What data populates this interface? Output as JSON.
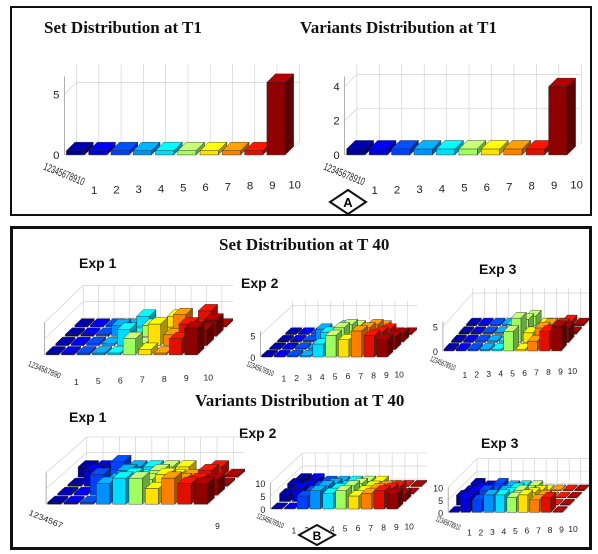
{
  "panel_a": {
    "badge": "A",
    "titles": [
      "Set Distribution at T1",
      "Variants Distribution at T1"
    ]
  },
  "panel_b": {
    "badge": "B",
    "titles": [
      "Set Distribution at T 40",
      "Variants Distribution at T 40"
    ]
  },
  "chart_data": [
    {
      "type": "bar3d",
      "title": "Set Distribution at T1",
      "x_ticks": [
        "1",
        "2",
        "3",
        "4",
        "5",
        "6",
        "7",
        "8",
        "9",
        "10"
      ],
      "z_ticks": [
        "0",
        "5"
      ],
      "zlim": [
        0,
        6.5
      ],
      "y_tick_text": "12345678910",
      "rows": [
        [
          0,
          0,
          0,
          0,
          0,
          0,
          0,
          0,
          0,
          6
        ]
      ],
      "grid": true
    },
    {
      "type": "bar3d",
      "title": "Variants Distribution at T1",
      "x_ticks": [
        "1",
        "2",
        "3",
        "4",
        "5",
        "6",
        "7",
        "8",
        "9",
        "10"
      ],
      "z_ticks": [
        "0",
        "2",
        "4"
      ],
      "zlim": [
        0,
        4.6
      ],
      "y_tick_text": "12345678910",
      "rows": [
        [
          0,
          0,
          0,
          0,
          0,
          0,
          0,
          0,
          0,
          4
        ]
      ],
      "grid": true
    },
    {
      "type": "bar3d",
      "title": "Exp 1",
      "x_ticks": [
        "1",
        "5",
        "6",
        "7",
        "8",
        "9",
        "10"
      ],
      "z_ticks": [],
      "zlim": [
        0,
        6
      ],
      "y_tick_text": "1234567890",
      "rows": [
        [
          0,
          0,
          0,
          0,
          0,
          3,
          1,
          0,
          3,
          5
        ],
        [
          0,
          0,
          0,
          0,
          3,
          0,
          4,
          2,
          4,
          3
        ],
        [
          0,
          0,
          0,
          2,
          0,
          2,
          0,
          4,
          2,
          3
        ],
        [
          0,
          0,
          0,
          0,
          2,
          0,
          2,
          0,
          3,
          0
        ]
      ],
      "grid": true
    },
    {
      "type": "bar3d",
      "title": "Exp 2",
      "x_ticks": [
        "1",
        "2",
        "3",
        "4",
        "5",
        "6",
        "7",
        "8",
        "9",
        "10"
      ],
      "z_ticks": [
        "0",
        "5"
      ],
      "zlim": [
        0,
        6
      ],
      "y_tick_text": "12345678910",
      "rows": [
        [
          0,
          0,
          0,
          0,
          3,
          5,
          4,
          6,
          5,
          4
        ],
        [
          0,
          0,
          0,
          0,
          4,
          5,
          3,
          5,
          4,
          3
        ],
        [
          0,
          0,
          0,
          3,
          2,
          4,
          2,
          4,
          3,
          2
        ],
        [
          0,
          0,
          0,
          0,
          2,
          2,
          1,
          2,
          0,
          0
        ]
      ],
      "grid": true
    },
    {
      "type": "bar3d",
      "title": "Exp 3",
      "x_ticks": [
        "1",
        "2",
        "3",
        "4",
        "5",
        "6",
        "7",
        "8",
        "9",
        "10"
      ],
      "z_ticks": [
        "0",
        "5"
      ],
      "zlim": [
        0,
        6
      ],
      "y_tick_text": "12345678910",
      "rows": [
        [
          0,
          0,
          0,
          0,
          0,
          4,
          0,
          2,
          4,
          5
        ],
        [
          0,
          0,
          0,
          0,
          0,
          5,
          2,
          3,
          0,
          3
        ],
        [
          0,
          0,
          0,
          0,
          2,
          3,
          0,
          2,
          2,
          0
        ],
        [
          0,
          0,
          0,
          0,
          0,
          2,
          0,
          0,
          1,
          0
        ]
      ],
      "grid": true
    },
    {
      "type": "bar3d",
      "title": "Exp 1",
      "x_ticks": [
        "9"
      ],
      "z_ticks": [],
      "zlim": [
        0,
        6
      ],
      "y_tick_text": "1234567",
      "rows": [
        [
          0,
          0,
          0,
          4,
          5,
          5,
          3,
          5,
          4,
          4
        ],
        [
          0,
          0,
          4,
          3,
          4,
          3,
          4,
          3,
          3,
          3
        ],
        [
          0,
          3,
          2,
          3,
          2,
          3,
          2,
          2,
          3,
          0
        ],
        [
          2,
          2,
          3,
          2,
          2,
          2,
          2,
          0,
          2,
          0
        ]
      ],
      "grid": true
    },
    {
      "type": "bar3d",
      "title": "Exp 2",
      "x_ticks": [
        "1",
        "2",
        "3",
        "4",
        "5",
        "6",
        "7",
        "8",
        "9",
        "10"
      ],
      "z_ticks": [
        "0",
        "5",
        "10"
      ],
      "zlim": [
        0,
        10
      ],
      "y_tick_text": "12345678910",
      "rows": [
        [
          0,
          0,
          5,
          7,
          6,
          7,
          5,
          6,
          7,
          6
        ],
        [
          3,
          5,
          4,
          6,
          5,
          6,
          4,
          5,
          5,
          3
        ],
        [
          4,
          3,
          3,
          4,
          3,
          4,
          3,
          3,
          3,
          0
        ],
        [
          3,
          3,
          2,
          2,
          2,
          2,
          2,
          0,
          0,
          0
        ]
      ],
      "grid": true
    },
    {
      "type": "bar3d",
      "title": "Exp 3",
      "x_ticks": [
        "1",
        "2",
        "3",
        "4",
        "5",
        "6",
        "7",
        "8",
        "9",
        "10"
      ],
      "z_ticks": [
        "0",
        "5",
        "10"
      ],
      "zlim": [
        0,
        10
      ],
      "y_tick_text": "12345678910",
      "rows": [
        [
          0,
          6,
          5,
          7,
          7,
          6,
          7,
          5,
          6,
          0
        ],
        [
          4,
          5,
          6,
          4,
          5,
          6,
          5,
          4,
          0,
          0
        ],
        [
          3,
          4,
          3,
          3,
          4,
          3,
          3,
          0,
          0,
          0
        ],
        [
          3,
          2,
          3,
          2,
          2,
          2,
          0,
          0,
          0,
          0
        ]
      ],
      "grid": true
    }
  ]
}
